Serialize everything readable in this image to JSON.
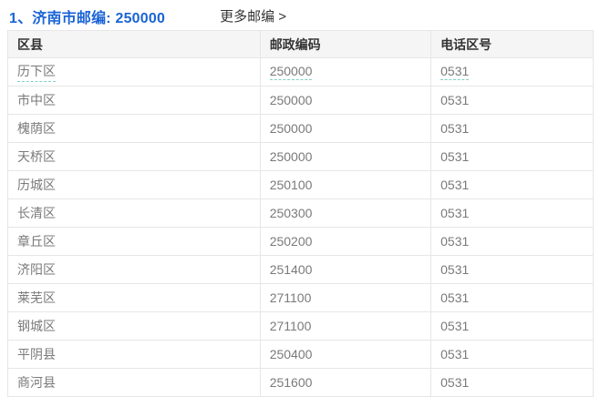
{
  "header": {
    "title": "1、济南市邮编: 250000",
    "more_link": "更多邮编 >"
  },
  "table": {
    "columns": [
      "区县",
      "邮政编码",
      "电话区号"
    ],
    "rows": [
      {
        "district": "历下区",
        "postal_code": "250000",
        "area_code": "0531",
        "linked": true
      },
      {
        "district": "市中区",
        "postal_code": "250000",
        "area_code": "0531",
        "linked": false
      },
      {
        "district": "槐荫区",
        "postal_code": "250000",
        "area_code": "0531",
        "linked": false
      },
      {
        "district": "天桥区",
        "postal_code": "250000",
        "area_code": "0531",
        "linked": false
      },
      {
        "district": "历城区",
        "postal_code": "250100",
        "area_code": "0531",
        "linked": false
      },
      {
        "district": "长清区",
        "postal_code": "250300",
        "area_code": "0531",
        "linked": false
      },
      {
        "district": "章丘区",
        "postal_code": "250200",
        "area_code": "0531",
        "linked": false
      },
      {
        "district": "济阳区",
        "postal_code": "251400",
        "area_code": "0531",
        "linked": false
      },
      {
        "district": "莱芜区",
        "postal_code": "271100",
        "area_code": "0531",
        "linked": false
      },
      {
        "district": "钢城区",
        "postal_code": "271100",
        "area_code": "0531",
        "linked": false
      },
      {
        "district": "平阴县",
        "postal_code": "250400",
        "area_code": "0531",
        "linked": false
      },
      {
        "district": "商河县",
        "postal_code": "251600",
        "area_code": "0531",
        "linked": false
      }
    ]
  },
  "colors": {
    "title_blue": "#1a64d6",
    "header_bg": "#f5f5f5",
    "border": "#e6e6e6",
    "underline_teal": "#7fd0c5",
    "cell_text": "#7a7a7a",
    "header_text": "#333333"
  }
}
